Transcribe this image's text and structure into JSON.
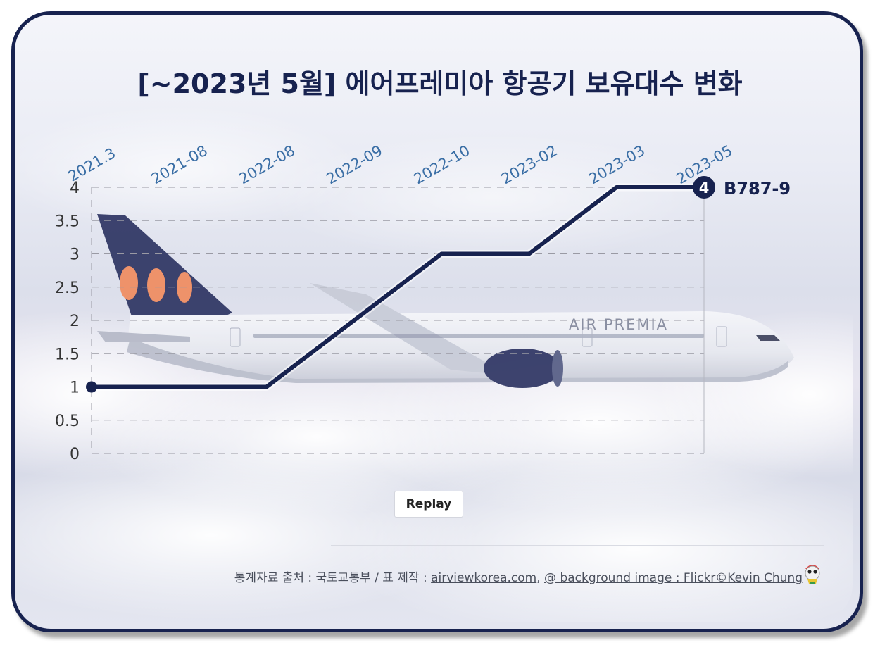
{
  "title": "[~2023년 5월] 에어프레미아 항공기 보유대수 변화",
  "chart_data": {
    "type": "line",
    "title": "[~2023년 5월] 에어프레미아 항공기 보유대수 변화",
    "xlabel": "",
    "ylabel": "",
    "categories": [
      "2021.3",
      "2021-08",
      "2022-08",
      "2022-09",
      "2022-10",
      "2023-02",
      "2023-03",
      "2023-05"
    ],
    "series": [
      {
        "name": "B787-9",
        "values": [
          1,
          1,
          1,
          2,
          3,
          3,
          4,
          4
        ]
      }
    ],
    "ylim": [
      0,
      4
    ],
    "yticks": [
      "0",
      "0.5",
      "1",
      "1.5",
      "2",
      "2.5",
      "3",
      "3.5",
      "4"
    ],
    "grid": true,
    "x_axis_position": "top",
    "end_value_label": "4",
    "colors": {
      "line": "#17224f",
      "category_labels": "#3a6ea5",
      "grid": "#9a9aa4"
    }
  },
  "background_image": {
    "airline_livery_text": "AIR PREMIA"
  },
  "replay_label": "Replay",
  "footer": {
    "prefix": "통계자료 출처 : 국토교통부 / 표 제작 : ",
    "link1": "airviewkorea.com",
    "sep": ", ",
    "link2": "@ background image : Flickr©Kevin Chung"
  }
}
